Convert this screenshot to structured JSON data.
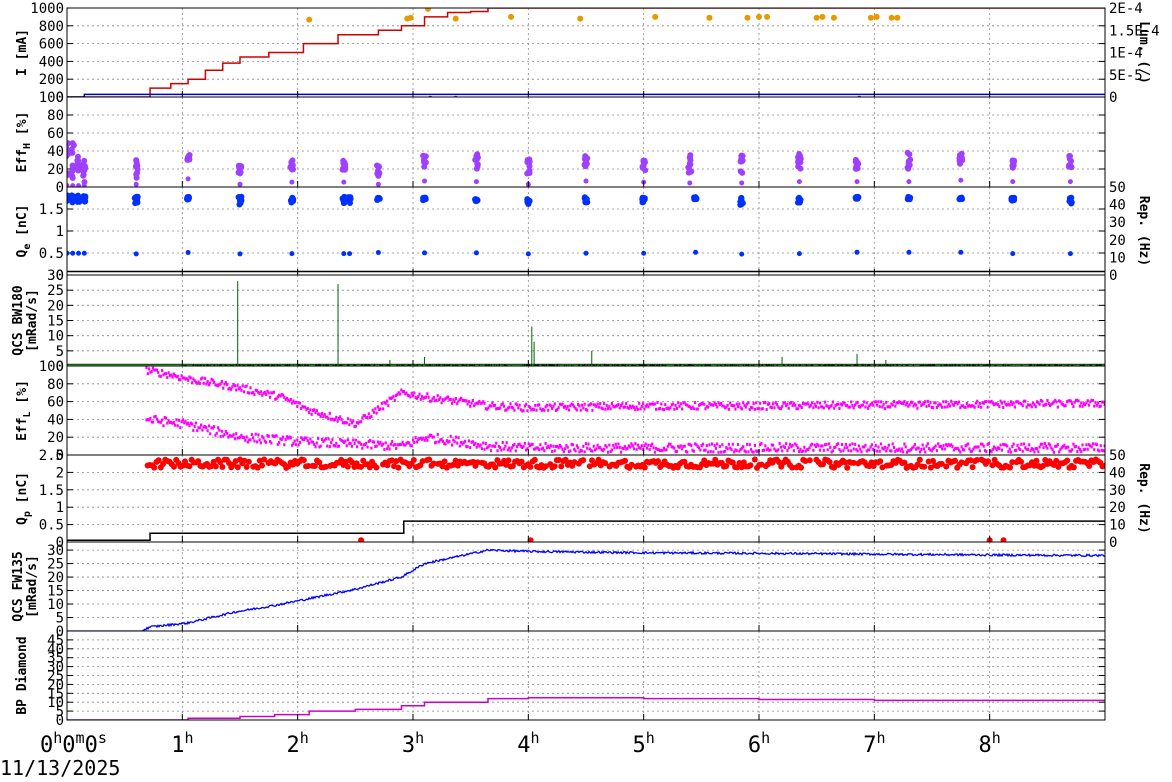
{
  "x_axis": {
    "range_hours": [
      0,
      9
    ],
    "ticks": [
      {
        "hours": 0,
        "label": "0",
        "sup": "h",
        "extra": "0",
        "extra_sup": "m",
        "extra2": "0",
        "extra2_sup": "s"
      },
      {
        "hours": 1,
        "label": "1",
        "sup": "h"
      },
      {
        "hours": 2,
        "label": "2",
        "sup": "h"
      },
      {
        "hours": 3,
        "label": "3",
        "sup": "h"
      },
      {
        "hours": 4,
        "label": "4",
        "sup": "h"
      },
      {
        "hours": 5,
        "label": "5",
        "sup": "h"
      },
      {
        "hours": 6,
        "label": "6",
        "sup": "h"
      },
      {
        "hours": 7,
        "label": "7",
        "sup": "h"
      },
      {
        "hours": 8,
        "label": "8",
        "sup": "h"
      }
    ],
    "date_label": "11/13/2025"
  },
  "chart_data": [
    {
      "id": "current",
      "type": "line",
      "ylabel": "I [mA]",
      "ylim": [
        0,
        1000
      ],
      "yticks": [
        0,
        200,
        400,
        600,
        800,
        1000
      ],
      "y2label": "Lum. (/)",
      "y2lim": [
        0,
        0.0002
      ],
      "y2ticks": [
        "0",
        "5E-5",
        "1E-4",
        "1.5E-4",
        "2E-4"
      ],
      "grid": true,
      "series": [
        {
          "color": "#d00000",
          "kind": "step",
          "x": [
            0,
            0.62,
            0.72,
            0.9,
            1.05,
            1.2,
            1.35,
            1.5,
            1.75,
            2.05,
            2.35,
            2.7,
            2.9,
            3.1,
            3.3,
            3.5,
            3.65,
            4.0,
            9.0
          ],
          "y": [
            0,
            0,
            100,
            150,
            200,
            300,
            380,
            450,
            500,
            600,
            700,
            750,
            800,
            900,
            950,
            960,
            1000,
            1000,
            1000
          ]
        },
        {
          "color": "#0000cc",
          "kind": "step",
          "x": [
            0,
            0.15,
            9.0
          ],
          "y": [
            0,
            30,
            30
          ]
        }
      ],
      "points": [
        {
          "color": "#e69a00",
          "x": [
            2.1,
            2.95,
            2.98,
            3.13,
            3.37,
            3.85,
            4.45,
            5.1,
            5.57,
            6.07,
            6.5,
            6.55,
            6.65,
            6.97,
            7.02,
            7.15,
            7.2,
            6.0,
            5.9
          ],
          "y": [
            870,
            880,
            890,
            990,
            880,
            900,
            880,
            900,
            890,
            900,
            890,
            900,
            890,
            890,
            900,
            890,
            890,
            900,
            890
          ]
        },
        {
          "color": "#8b4513",
          "x": [
            3.15,
            3.37,
            6.87
          ],
          "y": [
            -20,
            -20,
            -20
          ]
        }
      ]
    },
    {
      "id": "effh",
      "type": "scatter",
      "ylabel": "Eff_H [%]",
      "ylim": [
        0,
        100
      ],
      "yticks": [
        0,
        20,
        40,
        60,
        80,
        100
      ],
      "grid": true,
      "points": [
        {
          "color": "#a040ff",
          "clusters_x": [
            0.0,
            0.05,
            0.1,
            0.15,
            0.6,
            1.05,
            1.5,
            1.95,
            2.4,
            2.7,
            3.1,
            3.55,
            4.0,
            4.5,
            5.0,
            5.4,
            5.85,
            6.35,
            6.85,
            7.3,
            7.75,
            8.2,
            8.7
          ],
          "clusters_ymin": [
            5,
            5,
            5,
            5,
            10,
            30,
            10,
            18,
            18,
            10,
            22,
            20,
            10,
            22,
            18,
            15,
            15,
            20,
            20,
            20,
            25,
            20,
            20
          ],
          "clusters_ymax": [
            55,
            50,
            40,
            35,
            30,
            37,
            30,
            30,
            30,
            28,
            35,
            38,
            35,
            38,
            32,
            36,
            35,
            38,
            32,
            40,
            38,
            30,
            35
          ]
        }
      ]
    },
    {
      "id": "qe",
      "type": "scatter",
      "ylabel": "Q_e [nC]",
      "ylim": [
        0,
        2
      ],
      "yticks": [
        "0",
        "0.5",
        "1",
        "1.5"
      ],
      "y2label": "Rep. (Hz)",
      "y2lim": [
        0,
        50
      ],
      "y2ticks": [
        0,
        10,
        20,
        30,
        40,
        50
      ],
      "grid": true,
      "points": [
        {
          "color": "#0030ff",
          "clusters_x": [
            0.0,
            0.05,
            0.1,
            0.15,
            0.6,
            1.05,
            1.5,
            1.95,
            2.4,
            2.45,
            2.7,
            3.1,
            3.55,
            4.0,
            4.5,
            5.0,
            5.45,
            5.85,
            6.35,
            6.85,
            7.3,
            7.75,
            8.2,
            8.7
          ],
          "clusters_ymin": [
            1.65,
            1.65,
            1.65,
            1.65,
            1.6,
            1.7,
            1.6,
            1.62,
            1.62,
            1.62,
            1.7,
            1.68,
            1.68,
            1.6,
            1.65,
            1.65,
            1.72,
            1.58,
            1.62,
            1.72,
            1.72,
            1.72,
            1.62,
            1.62
          ],
          "clusters_ymax": [
            1.82,
            1.82,
            1.82,
            1.82,
            1.8,
            1.78,
            1.78,
            1.76,
            1.78,
            1.78,
            1.76,
            1.76,
            1.76,
            1.74,
            1.78,
            1.78,
            1.78,
            1.76,
            1.76,
            1.78,
            1.78,
            1.76,
            1.76,
            1.76
          ]
        }
      ],
      "series2": [
        {
          "color": "#000000",
          "kind": "step",
          "x": [
            0,
            9
          ],
          "y": [
            2,
            2
          ]
        }
      ]
    },
    {
      "id": "bw180",
      "type": "line",
      "ylabel": "QCS BW180 [mRad/s]",
      "ylim": [
        0,
        30
      ],
      "yticks": [
        0,
        5,
        10,
        15,
        20,
        25,
        30
      ],
      "grid": true,
      "series": [
        {
          "color": "#006400",
          "kind": "step",
          "x": [
            0,
            1.0,
            9.0
          ],
          "y": [
            0.5,
            0.5,
            0.5
          ]
        },
        {
          "color": "#000000",
          "kind": "noise",
          "x0": 1.0,
          "x1": 9.0,
          "ymean": 0.0,
          "yspread": 0.8
        }
      ],
      "spikes": [
        {
          "color": "#006400",
          "x": [
            1.48,
            2.35,
            4.03,
            4.05,
            4.55,
            3.1,
            2.8,
            6.2,
            6.85,
            7.1
          ],
          "y": [
            28,
            27,
            13,
            8,
            5,
            3,
            2,
            3,
            4,
            2
          ]
        }
      ]
    },
    {
      "id": "effl",
      "type": "scatter",
      "ylabel": "Eff_L [%]",
      "ylim": [
        0,
        100
      ],
      "yticks": [
        0,
        20,
        40,
        60,
        80,
        100
      ],
      "grid": true,
      "bands": [
        {
          "color": "#ff00ff",
          "x": [
            0.68,
            0.9,
            1.05,
            1.3,
            1.5,
            1.85,
            2.1,
            2.5,
            2.9,
            3.1,
            3.4,
            3.65,
            4.0,
            5.0,
            6.0,
            7.0,
            8.0,
            9.0
          ],
          "y": [
            95,
            90,
            85,
            80,
            75,
            65,
            50,
            35,
            70,
            65,
            60,
            55,
            53,
            55,
            55,
            56,
            57,
            58
          ],
          "spread": 4
        },
        {
          "color": "#ff00ff",
          "x": [
            0.68,
            1.0,
            1.5,
            2.0,
            2.5,
            2.9,
            3.1,
            3.4,
            3.65,
            4.0,
            5.0,
            6.0,
            7.0,
            8.0,
            9.0
          ],
          "y": [
            40,
            35,
            20,
            15,
            12,
            10,
            20,
            15,
            10,
            8,
            8,
            8,
            8,
            8,
            8
          ],
          "spread": 5
        }
      ]
    },
    {
      "id": "qp",
      "type": "scatter",
      "ylabel": "Q_p [nC]",
      "ylim": [
        0,
        2.5
      ],
      "yticks": [
        "0",
        "0.5",
        "1",
        "1.5",
        "2",
        "2.5"
      ],
      "y2label": "Rep. (Hz)",
      "y2lim": [
        0,
        50
      ],
      "y2ticks": [
        0,
        10,
        20,
        30,
        40,
        50
      ],
      "grid": true,
      "points": [
        {
          "color": "#ff0000",
          "x0": 0.68,
          "x1": 9.0,
          "ymean": 2.25,
          "yspread": 0.12
        },
        {
          "color": "#ff0000",
          "x": [
            2.55,
            4.02,
            8.0,
            8.12
          ],
          "y": [
            0.05,
            0.05,
            0.05,
            0.05
          ]
        }
      ],
      "series2": [
        {
          "color": "#000000",
          "kind": "step",
          "x": [
            0,
            0.7,
            0.72,
            2.9,
            2.92,
            9.0
          ],
          "y": [
            1,
            1,
            5,
            5,
            12,
            12
          ]
        }
      ]
    },
    {
      "id": "fw135",
      "type": "line",
      "ylabel": "QCS FW135 [mRad/s]",
      "ylim": [
        0,
        33
      ],
      "yticks": [
        0,
        5,
        10,
        15,
        20,
        25,
        30
      ],
      "grid": true,
      "series": [
        {
          "color": "#0000ff",
          "kind": "noise-step",
          "x": [
            0,
            0.65,
            0.72,
            1.05,
            1.45,
            1.8,
            2.1,
            2.5,
            2.9,
            3.1,
            3.65,
            4.0,
            5.0,
            6.0,
            7.0,
            8.0,
            9.0
          ],
          "y": [
            0,
            0,
            1.5,
            3,
            7,
            9.5,
            12,
            15.5,
            20,
            25,
            30,
            29.5,
            29,
            28.8,
            28.5,
            28.2,
            28
          ],
          "spread": 0.8
        }
      ]
    },
    {
      "id": "bp",
      "type": "line",
      "ylabel": "BP Diamond",
      "ylim": [
        0,
        50
      ],
      "yticks": [
        0,
        5,
        10,
        15,
        20,
        25,
        30,
        35,
        40,
        45
      ],
      "grid": true,
      "series": [
        {
          "color": "#cc00cc",
          "kind": "step",
          "x": [
            0,
            1.0,
            1.05,
            1.5,
            1.8,
            2.1,
            2.5,
            2.9,
            3.1,
            3.65,
            4.0,
            5.0,
            6.0,
            7.0,
            8.0,
            9.0
          ],
          "y": [
            0,
            0,
            1,
            2,
            3,
            5,
            6,
            8,
            10,
            12,
            12.5,
            12,
            11.5,
            11,
            11,
            11
          ]
        }
      ]
    }
  ]
}
